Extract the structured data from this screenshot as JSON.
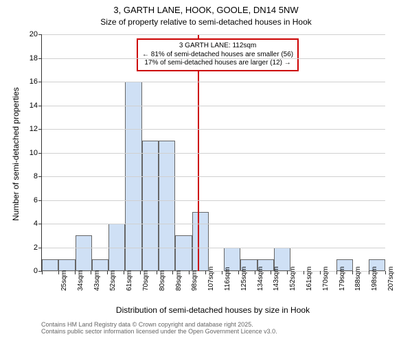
{
  "title_line1": "3, GARTH LANE, HOOK, GOOLE, DN14 5NW",
  "title_line2": "Size of property relative to semi-detached houses in Hook",
  "ylabel": "Number of semi-detached properties",
  "xlabel": "Distribution of semi-detached houses by size in Hook",
  "chart": {
    "type": "histogram",
    "background_color": "#ffffff",
    "grid_color": "#d0d0d0",
    "bar_fill": "#cfe0f5",
    "bar_border": "#666666",
    "ylim_max": 20,
    "ytick_step": 2,
    "yticks": [
      0,
      2,
      4,
      6,
      8,
      10,
      12,
      14,
      16,
      18,
      20
    ],
    "categories": [
      "25sqm",
      "34sqm",
      "43sqm",
      "52sqm",
      "61sqm",
      "70sqm",
      "80sqm",
      "89sqm",
      "98sqm",
      "107sqm",
      "116sqm",
      "125sqm",
      "134sqm",
      "143sqm",
      "152sqm",
      "161sqm",
      "170sqm",
      "179sqm",
      "188sqm",
      "198sqm",
      "207sqm"
    ],
    "values": [
      1,
      1,
      3,
      1,
      4,
      16,
      11,
      11,
      3,
      5,
      0,
      2,
      1,
      1,
      2,
      0,
      0,
      0,
      1,
      0,
      1
    ],
    "marker": {
      "color": "#cc0000",
      "position_index": 9.55
    },
    "annotation": {
      "border_color": "#cc0000",
      "line1": "3 GARTH LANE: 112sqm",
      "line2": "← 81% of semi-detached houses are smaller (56)",
      "line3": "17% of semi-detached houses are larger (12) →"
    }
  },
  "credits": {
    "line1": "Contains HM Land Registry data © Crown copyright and database right 2025.",
    "line2": "Contains public sector information licensed under the Open Government Licence v3.0."
  }
}
